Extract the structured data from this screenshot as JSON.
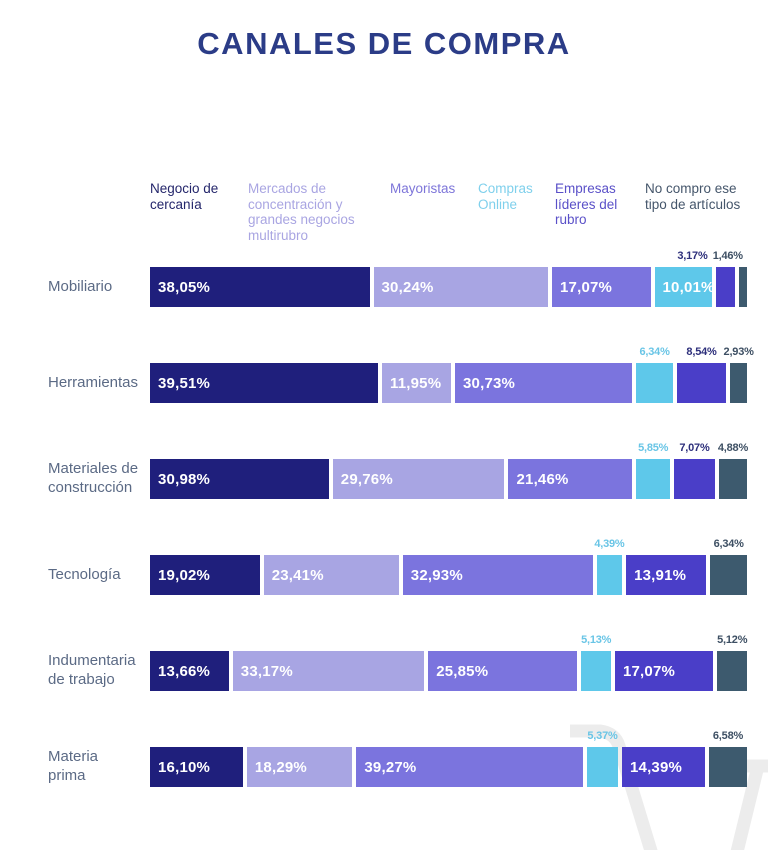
{
  "title": "CANALES DE COMPRA",
  "palette": {
    "title": "#2b3c87",
    "category_label": "#5b6a85",
    "background": "#ffffff",
    "watermark": "#ececec"
  },
  "legend": [
    {
      "label": "Negocio de cercanía",
      "color": "#24266b"
    },
    {
      "label": "Mercados de concentración y grandes negocios multirubro",
      "color": "#a9a5e2"
    },
    {
      "label": "Mayoristas",
      "color": "#7d75d9"
    },
    {
      "label": "Compras Online",
      "color": "#7fd0ec"
    },
    {
      "label": "Empresas líderes del rubro",
      "color": "#5a50c8"
    },
    {
      "label": "No compro ese tipo de artículos",
      "color": "#45566b"
    }
  ],
  "chart_data": {
    "type": "bar",
    "orientation": "horizontal",
    "stacked": true,
    "unit": "%",
    "decimal_separator": ",",
    "title": "CANALES DE COMPRA",
    "categories": [
      "Mobiliario",
      "Herramientas",
      "Materiales de construcción",
      "Tecnología",
      "Indumentaria de trabajo",
      "Materia prima"
    ],
    "categories_display": [
      [
        "Mobiliario"
      ],
      [
        "Herramientas"
      ],
      [
        "Materiales de",
        "construcción"
      ],
      [
        "Tecnología"
      ],
      [
        "Indumentaria",
        "de trabajo"
      ],
      [
        "Materia",
        "prima"
      ]
    ],
    "series": [
      {
        "name": "Negocio de cercanía",
        "color": "#1f1f7c",
        "label_color": "#ffffff",
        "values": [
          38.05,
          39.51,
          30.98,
          19.02,
          13.66,
          16.1
        ]
      },
      {
        "name": "Mercados de concentración y grandes negocios multirubro",
        "color": "#a8a5e3",
        "label_color": "#ffffff",
        "values": [
          30.24,
          11.95,
          29.76,
          23.41,
          33.17,
          18.29
        ]
      },
      {
        "name": "Mayoristas",
        "color": "#7b74de",
        "label_color": "#ffffff",
        "values": [
          17.07,
          30.73,
          21.46,
          32.93,
          25.85,
          39.27
        ]
      },
      {
        "name": "Compras Online",
        "color": "#5ec8ea",
        "label_color": "#69c5e6",
        "values": [
          10.01,
          6.34,
          5.85,
          4.39,
          5.13,
          5.37
        ]
      },
      {
        "name": "Empresas líderes del rubro",
        "color": "#4a3ec8",
        "label_color": "#2d2f7b",
        "values": [
          3.17,
          8.54,
          7.07,
          13.91,
          17.07,
          14.39
        ]
      },
      {
        "name": "No compro ese tipo de artículos",
        "color": "#3d5a6e",
        "label_color": "#3d4f63",
        "values": [
          1.46,
          2.93,
          4.88,
          6.34,
          5.12,
          6.58
        ]
      }
    ],
    "label_layout": [
      [
        "inside",
        "inside",
        "inside",
        "inside",
        "above",
        "above"
      ],
      [
        "inside",
        "inside",
        "inside",
        "above",
        "above",
        "above"
      ],
      [
        "inside",
        "inside",
        "inside",
        "above",
        "above",
        "above"
      ],
      [
        "inside",
        "inside",
        "inside",
        "above",
        "inside",
        "above"
      ],
      [
        "inside",
        "inside",
        "inside",
        "above",
        "inside",
        "above"
      ],
      [
        "inside",
        "inside",
        "inside",
        "above",
        "inside",
        "above"
      ]
    ],
    "xlim": [
      0,
      100
    ],
    "grid": false,
    "legend_position": "top"
  }
}
